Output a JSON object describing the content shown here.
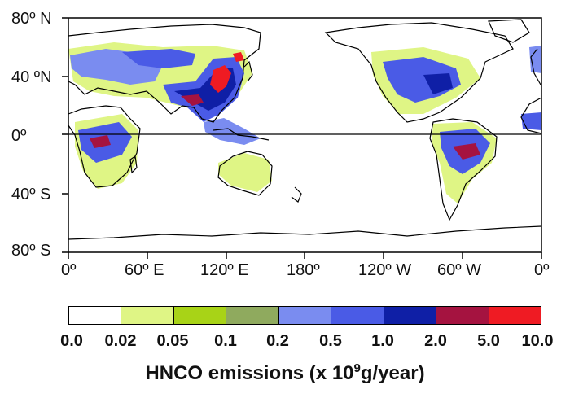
{
  "map": {
    "lat_labels": [
      "80º N",
      "40 ºN",
      "0º",
      "40º S",
      "80º S"
    ],
    "lon_labels": [
      "0º",
      "60º E",
      "120º E",
      "180º",
      "120º W",
      "60º W",
      "0º"
    ]
  },
  "legend": {
    "ticks": [
      "0.0",
      "0.02",
      "0.05",
      "0.1",
      "0.2",
      "0.5",
      "1.0",
      "2.0",
      "5.0",
      "10.0"
    ],
    "colors": [
      "#ffffff",
      "#dff585",
      "#a8d317",
      "#8faa5e",
      "#7a8cf0",
      "#4a5be6",
      "#0f1fa6",
      "#a51340",
      "#ef1b23"
    ],
    "title_prefix": "HNCO emissions (x 10",
    "title_exp": "9",
    "title_suffix": "g/year)"
  }
}
